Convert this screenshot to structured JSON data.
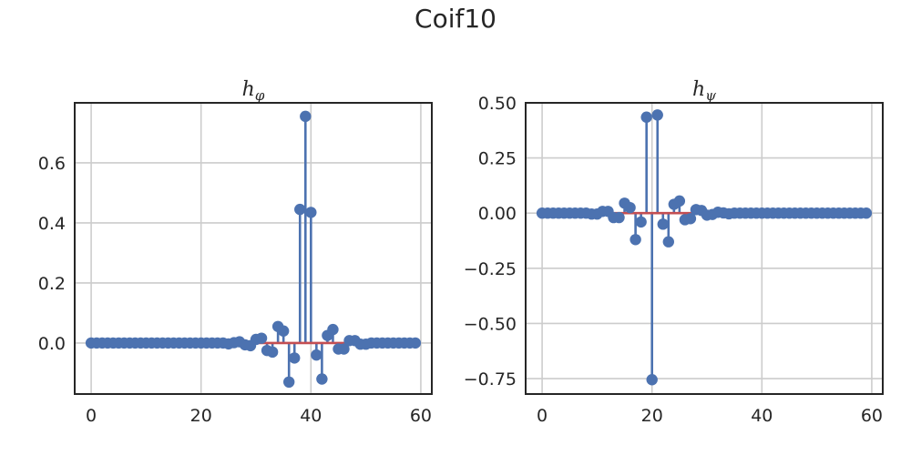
{
  "suptitle": "Coif10",
  "colors": {
    "stem": "#4c72b0",
    "baseline": "#c44e52",
    "grid": "#cccccc",
    "frame": "#262626"
  },
  "chart_data": [
    {
      "type": "stem",
      "title": "hφ",
      "title_main": "h",
      "title_sub": "φ",
      "grid": true,
      "xlim": [
        -3,
        62
      ],
      "ylim": [
        -0.17,
        0.8
      ],
      "xticks": [
        0,
        20,
        40,
        60
      ],
      "xtick_labels": [
        "0",
        "20",
        "40",
        "60"
      ],
      "yticks": [
        0.0,
        0.2,
        0.4,
        0.6
      ],
      "ytick_labels": [
        "0.0",
        "0.2",
        "0.4",
        "0.6"
      ],
      "x": [
        0,
        1,
        2,
        3,
        4,
        5,
        6,
        7,
        8,
        9,
        10,
        11,
        12,
        13,
        14,
        15,
        16,
        17,
        18,
        19,
        20,
        21,
        22,
        23,
        24,
        25,
        26,
        27,
        28,
        29,
        30,
        31,
        32,
        33,
        34,
        35,
        36,
        37,
        38,
        39,
        40,
        41,
        42,
        43,
        44,
        45,
        46,
        47,
        48,
        49,
        50,
        51,
        52,
        53,
        54,
        55,
        56,
        57,
        58,
        59
      ],
      "values": [
        0,
        0,
        0,
        0,
        0,
        0,
        0,
        0,
        0,
        0,
        0,
        0,
        0,
        0,
        0,
        0,
        0,
        0,
        0,
        0,
        0,
        0,
        0,
        0,
        0,
        -0.003,
        0.001,
        0.004,
        -0.006,
        -0.009,
        0.012,
        0.016,
        -0.025,
        -0.03,
        0.055,
        0.04,
        -0.13,
        -0.05,
        0.445,
        0.755,
        0.435,
        -0.04,
        -0.12,
        0.025,
        0.045,
        -0.02,
        -0.02,
        0.008,
        0.008,
        -0.004,
        -0.004,
        0,
        0,
        0,
        0,
        0,
        0,
        0,
        0,
        0
      ]
    },
    {
      "type": "stem",
      "title": "hψ",
      "title_main": "h",
      "title_sub": "ψ",
      "grid": true,
      "xlim": [
        -3,
        62
      ],
      "ylim": [
        -0.82,
        0.5
      ],
      "xticks": [
        0,
        20,
        40,
        60
      ],
      "xtick_labels": [
        "0",
        "20",
        "40",
        "60"
      ],
      "yticks": [
        0.5,
        0.25,
        0.0,
        -0.25,
        -0.5,
        -0.75
      ],
      "ytick_labels": [
        "0.50",
        "0.25",
        "0.00",
        "−0.25",
        "−0.50",
        "−0.75"
      ],
      "x": [
        0,
        1,
        2,
        3,
        4,
        5,
        6,
        7,
        8,
        9,
        10,
        11,
        12,
        13,
        14,
        15,
        16,
        17,
        18,
        19,
        20,
        21,
        22,
        23,
        24,
        25,
        26,
        27,
        28,
        29,
        30,
        31,
        32,
        33,
        34,
        35,
        36,
        37,
        38,
        39,
        40,
        41,
        42,
        43,
        44,
        45,
        46,
        47,
        48,
        49,
        50,
        51,
        52,
        53,
        54,
        55,
        56,
        57,
        58,
        59
      ],
      "values": [
        0,
        0,
        0,
        0,
        0,
        0,
        0,
        0,
        0,
        -0.004,
        -0.004,
        0.008,
        0.008,
        -0.02,
        -0.02,
        0.045,
        0.025,
        -0.12,
        -0.04,
        0.435,
        -0.755,
        0.445,
        -0.05,
        -0.13,
        0.04,
        0.055,
        -0.03,
        -0.025,
        0.016,
        0.012,
        -0.009,
        -0.006,
        0.004,
        0.001,
        -0.003,
        0,
        0,
        0,
        0,
        0,
        0,
        0,
        0,
        0,
        0,
        0,
        0,
        0,
        0,
        0,
        0,
        0,
        0,
        0,
        0,
        0,
        0,
        0,
        0,
        0
      ]
    }
  ]
}
